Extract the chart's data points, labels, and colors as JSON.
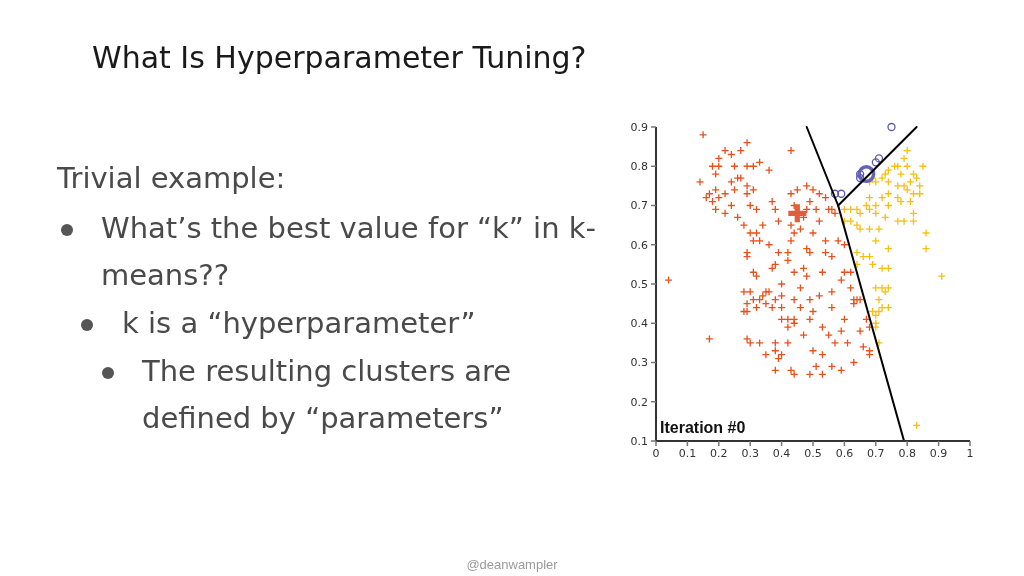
{
  "chart_data": {
    "type": "scatter",
    "title": "What Is Hyperparameter Tuning?",
    "annotations": [
      "Iteration #0",
      "Trivial example:",
      "What’s the best value for “k” in k-means??",
      "k is a “hyperparameter”",
      "The resulting clusters are defined by “parameters”",
      "@deanwampler"
    ],
    "xlim": [
      0,
      1
    ],
    "xticks": [
      0,
      0.1,
      0.2,
      0.3,
      0.4,
      0.5,
      0.6,
      0.7,
      0.8,
      0.9,
      1
    ],
    "ylim": [
      0.1,
      0.9
    ],
    "yticks": [
      0.1,
      0.2,
      0.3,
      0.4,
      0.5,
      0.6,
      0.7,
      0.8,
      0.9
    ],
    "series": [
      {
        "color": "#e8501e",
        "marker": "cross",
        "x": [
          0.15,
          0.14,
          0.04,
          0.22,
          0.27,
          0.29,
          0.2,
          0.24,
          0.33,
          0.36,
          0.18,
          0.2,
          0.19,
          0.25,
          0.29,
          0.31,
          0.17,
          0.19,
          0.2,
          0.22,
          0.24,
          0.26,
          0.27,
          0.29,
          0.25,
          0.29,
          0.31,
          0.3,
          0.32,
          0.24,
          0.22,
          0.19,
          0.16,
          0.18,
          0.26,
          0.37,
          0.38,
          0.34,
          0.28,
          0.3,
          0.32,
          0.33,
          0.31,
          0.36,
          0.39,
          0.29,
          0.29,
          0.32,
          0.31,
          0.37,
          0.38,
          0.39,
          0.42,
          0.43,
          0.43,
          0.44,
          0.43,
          0.42,
          0.44,
          0.4,
          0.17,
          0.28,
          0.3,
          0.29,
          0.31,
          0.33,
          0.34,
          0.35,
          0.36,
          0.28,
          0.29,
          0.32,
          0.35,
          0.37,
          0.38,
          0.4,
          0.4,
          0.42,
          0.42,
          0.44,
          0.29,
          0.3,
          0.33,
          0.35,
          0.38,
          0.38,
          0.4,
          0.42,
          0.39,
          0.38,
          0.43,
          0.44,
          0.4,
          0.44,
          0.48,
          0.45,
          0.43,
          0.5,
          0.52,
          0.49,
          0.54,
          0.56,
          0.48,
          0.51,
          0.55,
          0.47,
          0.52,
          0.57,
          0.46,
          0.44,
          0.5,
          0.54,
          0.58,
          0.48,
          0.54,
          0.6,
          0.49,
          0.56,
          0.6,
          0.62,
          0.47,
          0.53,
          0.48,
          0.59,
          0.46,
          0.49,
          0.52,
          0.56,
          0.62,
          0.63,
          0.64,
          0.65,
          0.63,
          0.46,
          0.5,
          0.56,
          0.6,
          0.44,
          0.49,
          0.53,
          0.59,
          0.47,
          0.55,
          0.65,
          0.61,
          0.57,
          0.5,
          0.53,
          0.51,
          0.56,
          0.63,
          0.59,
          0.49,
          0.53,
          0.66,
          0.68,
          0.68,
          0.68,
          0.67
        ],
        "values": [
          0.88,
          0.76,
          0.51,
          0.84,
          0.84,
          0.86,
          0.82,
          0.83,
          0.81,
          0.79,
          0.8,
          0.8,
          0.78,
          0.8,
          0.8,
          0.8,
          0.73,
          0.74,
          0.72,
          0.73,
          0.76,
          0.77,
          0.77,
          0.75,
          0.74,
          0.73,
          0.74,
          0.7,
          0.69,
          0.7,
          0.68,
          0.69,
          0.72,
          0.71,
          0.67,
          0.71,
          0.69,
          0.65,
          0.65,
          0.63,
          0.63,
          0.61,
          0.61,
          0.6,
          0.66,
          0.58,
          0.57,
          0.52,
          0.53,
          0.54,
          0.55,
          0.58,
          0.58,
          0.61,
          0.84,
          0.7,
          0.65,
          0.56,
          0.53,
          0.5,
          0.36,
          0.48,
          0.48,
          0.45,
          0.46,
          0.46,
          0.47,
          0.48,
          0.48,
          0.43,
          0.43,
          0.44,
          0.45,
          0.44,
          0.46,
          0.44,
          0.41,
          0.41,
          0.39,
          0.4,
          0.36,
          0.35,
          0.35,
          0.32,
          0.35,
          0.33,
          0.32,
          0.35,
          0.31,
          0.28,
          0.28,
          0.27,
          0.47,
          0.46,
          0.75,
          0.74,
          0.73,
          0.74,
          0.73,
          0.71,
          0.72,
          0.69,
          0.69,
          0.69,
          0.69,
          0.67,
          0.66,
          0.68,
          0.64,
          0.63,
          0.63,
          0.61,
          0.61,
          0.59,
          0.58,
          0.6,
          0.58,
          0.57,
          0.53,
          0.53,
          0.54,
          0.53,
          0.52,
          0.51,
          0.49,
          0.46,
          0.47,
          0.48,
          0.49,
          0.46,
          0.46,
          0.46,
          0.45,
          0.44,
          0.43,
          0.44,
          0.41,
          0.41,
          0.41,
          0.39,
          0.38,
          0.37,
          0.37,
          0.38,
          0.35,
          0.35,
          0.33,
          0.32,
          0.29,
          0.29,
          0.3,
          0.28,
          0.27,
          0.27,
          0.34,
          0.33,
          0.32,
          0.39,
          0.41
        ]
      },
      {
        "color": "#f5c010",
        "marker": "cross",
        "x": [
          0.8,
          0.79,
          0.85,
          0.76,
          0.77,
          0.74,
          0.73,
          0.78,
          0.8,
          0.82,
          0.83,
          0.81,
          0.79,
          0.77,
          0.74,
          0.72,
          0.7,
          0.69,
          0.68,
          0.74,
          0.77,
          0.8,
          0.82,
          0.84,
          0.84,
          0.81,
          0.78,
          0.74,
          0.72,
          0.7,
          0.68,
          0.67,
          0.64,
          0.62,
          0.65,
          0.68,
          0.7,
          0.73,
          0.77,
          0.79,
          0.82,
          0.82,
          0.62,
          0.64,
          0.65,
          0.68,
          0.71,
          0.86,
          0.86,
          0.7,
          0.74,
          0.64,
          0.66,
          0.68,
          0.69,
          0.72,
          0.74,
          0.64,
          0.91,
          0.7,
          0.72,
          0.71,
          0.73,
          0.74,
          0.69,
          0.71,
          0.72,
          0.74,
          0.7,
          0.7,
          0.7,
          0.71,
          0.83,
          0.6,
          0.6
        ],
        "values": [
          0.84,
          0.82,
          0.8,
          0.8,
          0.8,
          0.79,
          0.78,
          0.78,
          0.8,
          0.78,
          0.77,
          0.76,
          0.75,
          0.75,
          0.76,
          0.77,
          0.76,
          0.77,
          0.76,
          0.73,
          0.72,
          0.74,
          0.73,
          0.75,
          0.73,
          0.71,
          0.71,
          0.7,
          0.72,
          0.7,
          0.72,
          0.7,
          0.69,
          0.69,
          0.68,
          0.69,
          0.68,
          0.67,
          0.66,
          0.66,
          0.66,
          0.68,
          0.66,
          0.65,
          0.64,
          0.64,
          0.64,
          0.63,
          0.59,
          0.61,
          0.59,
          0.58,
          0.57,
          0.57,
          0.55,
          0.54,
          0.54,
          0.55,
          0.52,
          0.49,
          0.49,
          0.46,
          0.48,
          0.49,
          0.43,
          0.43,
          0.44,
          0.44,
          0.42,
          0.4,
          0.39,
          0.35,
          0.14,
          0.69,
          0.66
        ]
      },
      {
        "color": "#5b5bab",
        "marker": "circle",
        "x": [
          0.57,
          0.59,
          0.65,
          0.65,
          0.7,
          0.71,
          0.75
        ],
        "values": [
          0.73,
          0.73,
          0.77,
          0.78,
          0.81,
          0.82,
          0.9
        ]
      },
      {
        "type": "bubble",
        "color": "#6464b4",
        "marker": "circle",
        "x": [
          0.67
        ],
        "values": [
          0.78
        ],
        "sizes": [
          1
        ]
      },
      {
        "type": "bubble",
        "color": "#e0603c",
        "marker": "cross",
        "x": [
          0.45
        ],
        "values": [
          0.68
        ],
        "sizes": [
          1
        ]
      },
      {
        "type": "line",
        "color": "#000000",
        "marker": "none",
        "x": [
          0.48,
          0.58,
          0.79
        ],
        "values": [
          0.9,
          0.7,
          0.1
        ]
      },
      {
        "type": "line",
        "color": "#000000",
        "marker": "none",
        "x": [
          0.58,
          0.83
        ],
        "values": [
          0.7,
          0.9
        ]
      }
    ]
  }
}
